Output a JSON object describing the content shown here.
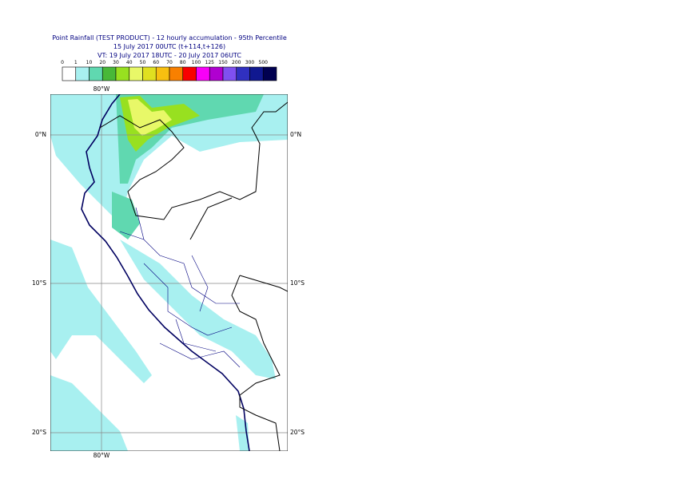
{
  "header": {
    "title": "Point Rainfall (TEST PRODUCT) - 12 hourly accumulation - 95th Percentile",
    "base_time": "15 July 2017 00UTC (t+114,t+126)",
    "valid_time": "VT: 19 July 2017 18UTC - 20 July 2017 06UTC"
  },
  "colorbar": {
    "ticks": [
      0,
      1,
      10,
      20,
      30,
      40,
      50,
      60,
      70,
      80,
      100,
      125,
      150,
      200,
      300,
      500
    ],
    "colors": [
      "#ffffff",
      "#a8f0f0",
      "#60d8b0",
      "#48b838",
      "#98e020",
      "#e8f868",
      "#e0e020",
      "#f8c010",
      "#f88000",
      "#f80000",
      "#f800f8",
      "#b000d0",
      "#8050f0",
      "#3030c0",
      "#101890",
      "#000050"
    ]
  },
  "map": {
    "lon_label_top": "80°W",
    "lon_label_bottom": "80°W",
    "lat_labels_left": [
      "0°N",
      "10°S",
      "20°S"
    ],
    "lat_labels_right": [
      "0°N",
      "10°S",
      "20°S"
    ]
  }
}
